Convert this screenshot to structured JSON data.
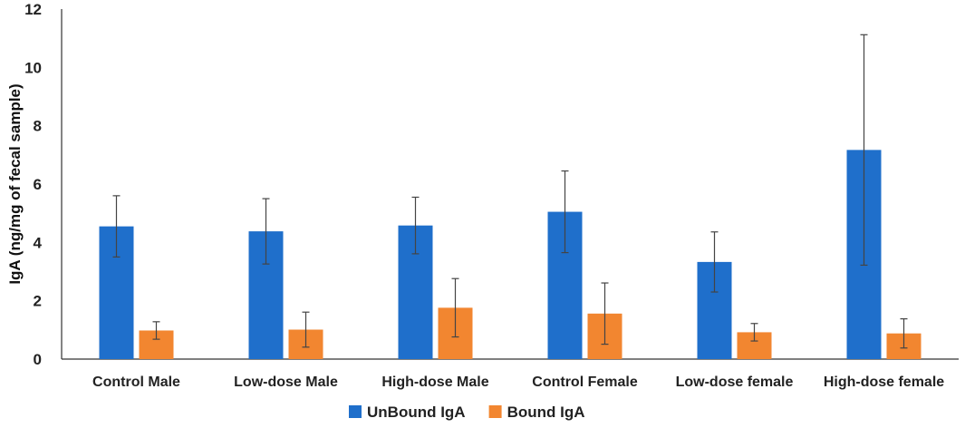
{
  "chart_data": {
    "type": "bar",
    "title": "",
    "xlabel": "",
    "ylabel": "IgA (ng/mg of fecal sample)",
    "ylim": [
      0,
      12
    ],
    "yticks": [
      0,
      2,
      4,
      6,
      8,
      10,
      12
    ],
    "categories": [
      "Control Male",
      "Low-dose Male",
      "High-dose Male",
      "Control Female",
      "Low-dose female",
      "High-dose female"
    ],
    "series": [
      {
        "name": "UnBound IgA",
        "color": "#1f6fcb",
        "values": [
          4.55,
          4.38,
          4.58,
          5.05,
          3.33,
          7.17
        ],
        "error": [
          1.05,
          1.12,
          0.97,
          1.4,
          1.03,
          3.95
        ]
      },
      {
        "name": "Bound IgA",
        "color": "#f28630",
        "values": [
          0.98,
          1.01,
          1.76,
          1.56,
          0.92,
          0.88
        ],
        "error": [
          0.3,
          0.6,
          1.0,
          1.05,
          0.3,
          0.5
        ]
      }
    ],
    "legend_position": "bottom"
  }
}
